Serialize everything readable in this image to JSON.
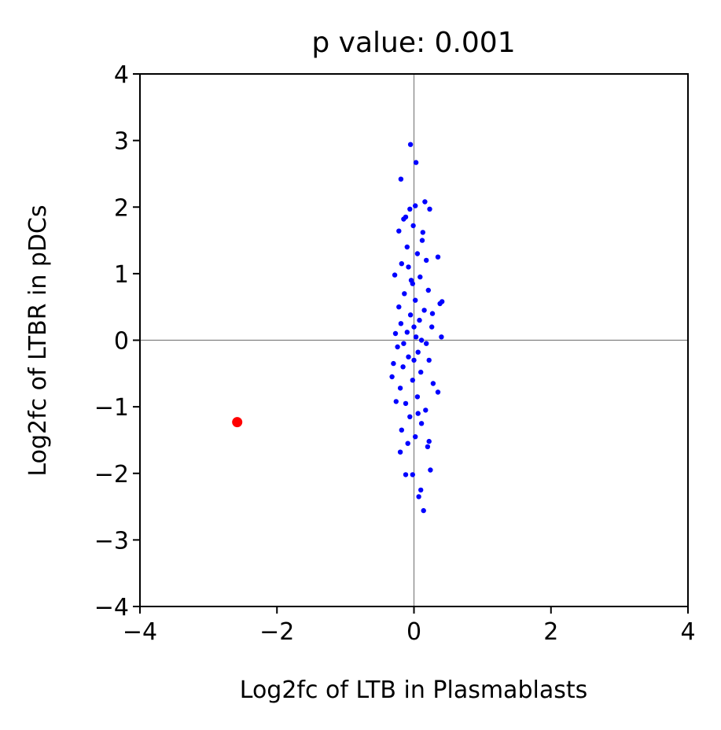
{
  "chart_data": {
    "type": "scatter",
    "title": "p value: 0.001",
    "xlabel": "Log2fc of LTB in Plasmablasts",
    "ylabel": "Log2fc of LTBR in pDCs",
    "xlim": [
      -4,
      4
    ],
    "ylim": [
      -4,
      4
    ],
    "xticks": [
      "−4",
      "−2",
      "0",
      "2",
      "4"
    ],
    "yticks": [
      "−4",
      "−3",
      "−2",
      "−1",
      "0",
      "1",
      "2",
      "3",
      "4"
    ],
    "xtick_values": [
      -4,
      -2,
      0,
      2,
      4
    ],
    "ytick_values": [
      -4,
      -3,
      -2,
      -1,
      0,
      1,
      2,
      3,
      4
    ],
    "reference_lines": {
      "x": 0,
      "y": 0,
      "color": "#808080"
    },
    "grid": false,
    "series": [
      {
        "color": "#0000ff",
        "marker": "small-dot",
        "points": [
          [
            -0.05,
            2.94
          ],
          [
            0.03,
            2.67
          ],
          [
            -0.19,
            2.42
          ],
          [
            0.16,
            2.08
          ],
          [
            0.23,
            1.97
          ],
          [
            0.02,
            2.02
          ],
          [
            -0.06,
            1.97
          ],
          [
            -0.15,
            1.82
          ],
          [
            -0.22,
            1.64
          ],
          [
            0.35,
            1.25
          ],
          [
            -0.28,
            0.98
          ],
          [
            0.41,
            0.58
          ],
          [
            0.38,
            0.55
          ],
          [
            0.4,
            0.05
          ],
          [
            -0.3,
            -0.35
          ],
          [
            -0.32,
            -0.55
          ],
          [
            0.35,
            -0.78
          ],
          [
            -0.26,
            -0.92
          ],
          [
            0.22,
            -1.52
          ],
          [
            -0.2,
            -1.68
          ],
          [
            -0.12,
            -2.02
          ],
          [
            -0.02,
            -2.02
          ],
          [
            0.24,
            -1.95
          ],
          [
            0.1,
            -2.25
          ],
          [
            0.07,
            -2.35
          ],
          [
            0.14,
            -2.56
          ],
          [
            -0.1,
            1.4
          ],
          [
            0.12,
            1.5
          ],
          [
            0.05,
            1.3
          ],
          [
            -0.08,
            1.1
          ],
          [
            0.18,
            1.2
          ],
          [
            -0.18,
            1.15
          ],
          [
            0.09,
            0.95
          ],
          [
            -0.02,
            0.85
          ],
          [
            0.21,
            0.75
          ],
          [
            -0.14,
            0.7
          ],
          [
            0.02,
            0.6
          ],
          [
            -0.22,
            0.5
          ],
          [
            0.15,
            0.45
          ],
          [
            -0.05,
            0.38
          ],
          [
            0.08,
            0.3
          ],
          [
            -0.19,
            0.25
          ],
          [
            0.26,
            0.2
          ],
          [
            -0.1,
            0.12
          ],
          [
            0.03,
            0.05
          ],
          [
            0.18,
            -0.05
          ],
          [
            -0.24,
            -0.1
          ],
          [
            0.06,
            -0.18
          ],
          [
            -0.08,
            -0.25
          ],
          [
            0.22,
            -0.3
          ],
          [
            -0.16,
            -0.4
          ],
          [
            0.1,
            -0.48
          ],
          [
            -0.02,
            -0.6
          ],
          [
            0.28,
            -0.65
          ],
          [
            -0.2,
            -0.72
          ],
          [
            0.05,
            -0.85
          ],
          [
            -0.12,
            -0.95
          ],
          [
            0.17,
            -1.05
          ],
          [
            -0.06,
            -1.15
          ],
          [
            0.11,
            -1.25
          ],
          [
            -0.18,
            -1.35
          ],
          [
            0.02,
            -1.45
          ],
          [
            0.2,
            -1.6
          ],
          [
            -0.09,
            -1.55
          ],
          [
            0.13,
            1.62
          ],
          [
            -0.01,
            1.72
          ],
          [
            -0.12,
            1.85
          ],
          [
            0.11,
            0.0
          ],
          [
            -0.15,
            -0.05
          ],
          [
            0.0,
            0.2
          ],
          [
            0.0,
            -0.3
          ],
          [
            -0.04,
            0.9
          ],
          [
            0.06,
            -1.1
          ],
          [
            0.27,
            0.4
          ],
          [
            -0.27,
            0.1
          ]
        ]
      },
      {
        "color": "#ff0000",
        "marker": "dot",
        "points": [
          [
            -2.58,
            -1.23
          ]
        ]
      }
    ]
  }
}
